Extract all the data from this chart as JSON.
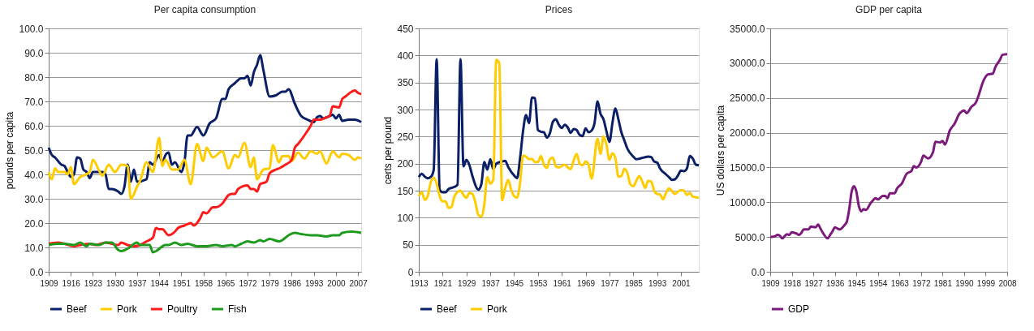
{
  "chart_data": [
    {
      "type": "line",
      "title": "Per capita consumption",
      "ylabel": "pounds per capita",
      "legend": "bottom",
      "grid": "y",
      "xlim": [
        1909,
        2008
      ],
      "xticks": [
        1909,
        1916,
        1923,
        1930,
        1937,
        1944,
        1951,
        1958,
        1965,
        1972,
        1979,
        1986,
        1993,
        2000,
        2007
      ],
      "ylim": [
        0,
        100
      ],
      "yticks": [
        {
          "value": 0,
          "label": "0.0"
        },
        {
          "value": 10,
          "label": "10.0"
        },
        {
          "value": 20,
          "label": "20.0"
        },
        {
          "value": 30,
          "label": "30.0"
        },
        {
          "value": 40,
          "label": "40.0"
        },
        {
          "value": 50,
          "label": "50.0"
        },
        {
          "value": 60,
          "label": "60.0"
        },
        {
          "value": 70,
          "label": "70.0"
        },
        {
          "value": 80,
          "label": "80.0"
        },
        {
          "value": 90,
          "label": "90.0"
        },
        {
          "value": 100,
          "label": "100.0"
        }
      ],
      "series": [
        {
          "name": "Beef",
          "color": "#0a1f66",
          "x": [
            1909,
            1910,
            1911,
            1913,
            1914,
            1915,
            1916,
            1917,
            1918,
            1919,
            1920,
            1921,
            1922,
            1923,
            1926,
            1927,
            1928,
            1929,
            1931,
            1932,
            1933,
            1934,
            1935,
            1936,
            1937,
            1940,
            1941,
            1942,
            1944,
            1945,
            1946,
            1947,
            1948,
            1949,
            1951,
            1952,
            1953,
            1954,
            1956,
            1958,
            1960,
            1962,
            1964,
            1965,
            1966,
            1968,
            1970,
            1971,
            1972,
            1973,
            1974,
            1975,
            1976,
            1977,
            1979,
            1981,
            1983,
            1984,
            1985,
            1987,
            1989,
            1991,
            1993,
            1994,
            1995,
            1996,
            1998,
            1999,
            2000,
            2001,
            2002,
            2004,
            2006,
            2008
          ],
          "values": [
            51,
            48,
            47,
            44,
            43.5,
            41,
            39,
            40,
            47,
            46.5,
            42,
            41,
            38.5,
            41,
            41,
            40,
            34,
            34,
            33,
            32,
            35,
            44,
            37,
            42,
            37,
            38,
            45,
            44,
            48,
            45,
            48,
            49,
            44,
            45,
            41,
            45,
            56,
            56,
            59.5,
            56,
            61,
            63,
            71,
            71,
            75,
            77.5,
            79.5,
            79.5,
            80.5,
            76.5,
            82,
            85,
            89,
            83,
            72,
            72.5,
            74,
            74,
            75,
            69,
            64,
            62.5,
            61.5,
            63.5,
            64,
            63,
            64,
            64.5,
            63,
            64.5,
            62,
            62.5,
            62.5,
            61.5
          ]
        },
        {
          "name": "Pork",
          "color": "#ffcc00",
          "x": [
            1909,
            1910,
            1911,
            1912,
            1914,
            1915,
            1916,
            1917,
            1919,
            1920,
            1922,
            1923,
            1925,
            1926,
            1928,
            1930,
            1932,
            1934,
            1935,
            1937,
            1938,
            1940,
            1942,
            1944,
            1945,
            1946,
            1948,
            1950,
            1952,
            1954,
            1956,
            1958,
            1959,
            1961,
            1964,
            1966,
            1968,
            1969,
            1971,
            1973,
            1974,
            1975,
            1977,
            1979,
            1980,
            1982,
            1983,
            1985,
            1986,
            1988,
            1990,
            1992,
            1994,
            1995,
            1997,
            1999,
            2001,
            2002,
            2004,
            2006,
            2007,
            2008
          ],
          "values": [
            41,
            38,
            42.5,
            41,
            41,
            40,
            43,
            36,
            39,
            39.5,
            41,
            46,
            41.5,
            39.5,
            44,
            41,
            44,
            43.5,
            30,
            35,
            37.5,
            45,
            41,
            55,
            43.5,
            46,
            42,
            42,
            46,
            36,
            52.5,
            45.5,
            51,
            47,
            49.5,
            42.5,
            48,
            47,
            53,
            43,
            47,
            38,
            42,
            42.5,
            52,
            45,
            47.5,
            47.5,
            45.5,
            49,
            46.5,
            49.5,
            48.5,
            49.5,
            44.5,
            49.5,
            47,
            48.5,
            48,
            46,
            47,
            46.5
          ]
        },
        {
          "name": "Poultry",
          "color": "#ff1a1a",
          "x": [
            1909,
            1912,
            1914,
            1917,
            1919,
            1922,
            1924,
            1927,
            1929,
            1931,
            1932,
            1934,
            1936,
            1938,
            1940,
            1942,
            1943,
            1944,
            1945,
            1947,
            1949,
            1950,
            1952,
            1954,
            1955,
            1957,
            1958,
            1959,
            1961,
            1962,
            1964,
            1966,
            1967,
            1968,
            1969,
            1972,
            1973,
            1974,
            1975,
            1976,
            1978,
            1979,
            1981,
            1982,
            1984,
            1986,
            1987,
            1988,
            1990,
            1992,
            1993,
            1995,
            1997,
            1998,
            1999,
            2001,
            2002,
            2003,
            2005,
            2006,
            2007,
            2008
          ],
          "values": [
            11.5,
            12,
            11.5,
            10.5,
            11,
            11.5,
            11,
            12,
            11.5,
            11,
            12,
            11,
            10.5,
            11,
            12.5,
            14,
            18,
            17.5,
            17.5,
            15,
            16.5,
            18,
            19,
            20,
            19,
            22,
            24.5,
            24,
            26.5,
            26.5,
            28,
            31.5,
            32,
            32,
            34,
            35.5,
            34,
            34,
            33,
            36,
            37,
            40.5,
            42,
            42.5,
            44,
            46,
            51,
            52.5,
            56,
            60,
            62.5,
            62.5,
            63.5,
            64,
            68,
            67.5,
            71,
            72,
            74,
            74.5,
            73.5,
            73
          ]
        },
        {
          "name": "Fish",
          "color": "#1e9a1e",
          "x": [
            1909,
            1912,
            1914,
            1917,
            1919,
            1921,
            1922,
            1925,
            1927,
            1929,
            1931,
            1932,
            1934,
            1937,
            1938,
            1941,
            1942,
            1943,
            1946,
            1947,
            1949,
            1951,
            1953,
            1956,
            1959,
            1962,
            1964,
            1967,
            1968,
            1970,
            1972,
            1974,
            1976,
            1977,
            1979,
            1982,
            1983,
            1985,
            1987,
            1989,
            1992,
            1994,
            1997,
            1999,
            2001,
            2002,
            2005,
            2008
          ],
          "values": [
            11,
            11.5,
            11.5,
            11,
            12,
            10.5,
            11.5,
            11,
            12,
            12,
            9,
            8.5,
            9.5,
            12,
            11,
            11,
            8,
            8.5,
            11,
            11,
            12,
            11,
            11.5,
            10.5,
            10.5,
            11,
            10.5,
            11,
            10.5,
            11.5,
            12.5,
            12,
            13,
            12.5,
            13.5,
            12.5,
            13,
            15,
            16,
            15.5,
            15,
            15,
            14.5,
            15,
            15,
            16,
            16.5,
            16
          ]
        }
      ]
    },
    {
      "type": "line",
      "title": "Prices",
      "ylabel": "certs per pound",
      "legend": "bottom",
      "grid": "y",
      "xlim": [
        1913,
        2007
      ],
      "xticks": [
        1913,
        1921,
        1929,
        1937,
        1945,
        1953,
        1961,
        1969,
        1977,
        1985,
        1993,
        2001
      ],
      "ylim": [
        0,
        450
      ],
      "yticks": [
        0,
        50,
        100,
        150,
        200,
        250,
        300,
        350,
        400,
        450
      ],
      "series": [
        {
          "name": "Beef",
          "color": "#0a1f66",
          "x": [
            1913,
            1914,
            1915,
            1916,
            1917,
            1918,
            1919,
            1920,
            1921,
            1922,
            1923,
            1925,
            1926,
            1927,
            1928,
            1929,
            1930,
            1931,
            1933,
            1934,
            1935,
            1936,
            1937,
            1938,
            1939,
            1941,
            1942,
            1943,
            1945,
            1946,
            1947,
            1948,
            1949,
            1950,
            1951,
            1952,
            1953,
            1954,
            1955,
            1956,
            1957,
            1958,
            1959,
            1960,
            1961,
            1962,
            1963,
            1964,
            1965,
            1966,
            1967,
            1968,
            1969,
            1970,
            1971,
            1972,
            1973,
            1974,
            1975,
            1976,
            1977,
            1978,
            1979,
            1980,
            1981,
            1982,
            1983,
            1985,
            1986,
            1987,
            1989,
            1990,
            1991,
            1992,
            1993,
            1994,
            1996,
            1997,
            1998,
            1999,
            2000,
            2001,
            2002,
            2003,
            2004,
            2005,
            2006,
            2007
          ],
          "values": [
            175,
            181,
            176,
            173,
            175,
            188,
            393,
            152,
            147,
            147,
            153,
            157,
            161,
            393,
            195,
            207,
            197,
            177,
            152,
            162,
            203,
            189,
            208,
            190,
            200,
            204,
            205,
            194,
            178,
            173,
            210,
            260,
            290,
            275,
            322,
            321,
            262,
            259,
            258,
            248,
            256,
            277,
            282,
            272,
            266,
            272,
            267,
            257,
            264,
            262,
            253,
            251,
            265,
            258,
            261,
            275,
            315,
            292,
            282,
            260,
            240,
            275,
            302,
            282,
            258,
            243,
            228,
            213,
            208,
            209,
            212,
            213,
            212,
            204,
            202,
            191,
            180,
            175,
            170,
            171,
            178,
            187,
            186,
            191,
            214,
            209,
            198,
            197
          ]
        },
        {
          "name": "Pork",
          "color": "#ffcc00",
          "x": [
            1913,
            1914,
            1915,
            1916,
            1917,
            1918,
            1919,
            1920,
            1921,
            1922,
            1923,
            1924,
            1925,
            1927,
            1928,
            1929,
            1930,
            1931,
            1932,
            1933,
            1934,
            1935,
            1936,
            1937,
            1938,
            1939,
            1940,
            1941,
            1942,
            1943,
            1944,
            1945,
            1946,
            1947,
            1948,
            1949,
            1950,
            1951,
            1952,
            1953,
            1954,
            1955,
            1956,
            1957,
            1958,
            1959,
            1960,
            1962,
            1963,
            1964,
            1965,
            1966,
            1967,
            1968,
            1969,
            1970,
            1971,
            1973,
            1974,
            1975,
            1976,
            1977,
            1978,
            1979,
            1980,
            1981,
            1982,
            1983,
            1984,
            1985,
            1986,
            1987,
            1988,
            1989,
            1990,
            1991,
            1992,
            1993,
            1994,
            1995,
            1996,
            1997,
            1998,
            1999,
            2000,
            2001,
            2002,
            2003,
            2004,
            2005,
            2007
          ],
          "values": [
            140,
            147,
            133,
            140,
            165,
            174,
            163,
            140,
            130,
            130,
            118,
            120,
            140,
            150,
            142,
            137,
            146,
            144,
            128,
            105,
            102,
            125,
            175,
            163,
            170,
            392,
            386,
            132,
            155,
            170,
            152,
            140,
            137,
            165,
            215,
            213,
            208,
            209,
            203,
            203,
            214,
            198,
            192,
            208,
            211,
            195,
            193,
            198,
            193,
            190,
            206,
            218,
            200,
            197,
            204,
            198,
            172,
            246,
            218,
            250,
            235,
            207,
            219,
            210,
            176,
            177,
            190,
            183,
            162,
            158,
            168,
            177,
            167,
            155,
            168,
            167,
            150,
            144,
            143,
            134,
            146,
            154,
            149,
            144,
            148,
            151,
            150,
            142,
            146,
            139,
            137
          ]
        }
      ]
    },
    {
      "type": "line",
      "title": "GDP per capita",
      "ylabel": "US dollars per capita",
      "legend": "bottom",
      "grid": "y",
      "xlim": [
        1909,
        2008
      ],
      "xticks": [
        1909,
        1918,
        1927,
        1936,
        1945,
        1954,
        1963,
        1972,
        1981,
        1990,
        1999,
        2008
      ],
      "ylim": [
        0,
        35000
      ],
      "yticks": [
        {
          "value": 0,
          "label": "0.0"
        },
        {
          "value": 5000,
          "label": "5000.0"
        },
        {
          "value": 10000,
          "label": "10000.0"
        },
        {
          "value": 15000,
          "label": "15000.0"
        },
        {
          "value": 20000,
          "label": "20000.0"
        },
        {
          "value": 25000,
          "label": "25000.0"
        },
        {
          "value": 30000,
          "label": "30000.0"
        },
        {
          "value": 35000,
          "label": "35000.0"
        }
      ],
      "series": [
        {
          "name": "GDP",
          "color": "#7b1a7b",
          "x": [
            1909,
            1911,
            1912,
            1913,
            1914,
            1916,
            1917,
            1918,
            1920,
            1921,
            1922,
            1923,
            1925,
            1926,
            1928,
            1929,
            1930,
            1931,
            1933,
            1934,
            1935,
            1936,
            1938,
            1940,
            1941,
            1942,
            1943,
            1944,
            1945,
            1946,
            1947,
            1948,
            1949,
            1951,
            1952,
            1953,
            1954,
            1956,
            1957,
            1958,
            1959,
            1961,
            1962,
            1964,
            1966,
            1968,
            1969,
            1970,
            1972,
            1973,
            1975,
            1977,
            1978,
            1980,
            1981,
            1982,
            1984,
            1986,
            1988,
            1990,
            1991,
            1993,
            1995,
            1996,
            1998,
            2000,
            2002,
            2003,
            2005,
            2006,
            2008
          ],
          "values": [
            5000,
            5100,
            5300,
            5200,
            4800,
            5400,
            5300,
            5700,
            5500,
            5300,
            5600,
            6100,
            6100,
            6500,
            6400,
            6800,
            6200,
            5600,
            4800,
            5300,
            5800,
            6400,
            6100,
            6700,
            7200,
            9000,
            11500,
            12300,
            11500,
            9500,
            8700,
            9000,
            8900,
            9900,
            10300,
            10600,
            10400,
            10900,
            10900,
            10600,
            11300,
            11300,
            12000,
            12700,
            14100,
            14500,
            15200,
            15000,
            15800,
            16700,
            16300,
            17200,
            18700,
            18600,
            18800,
            18300,
            20300,
            21300,
            22700,
            23200,
            22800,
            23700,
            24400,
            25300,
            27400,
            28400,
            28500,
            29400,
            30500,
            31200,
            31300
          ]
        }
      ]
    }
  ]
}
